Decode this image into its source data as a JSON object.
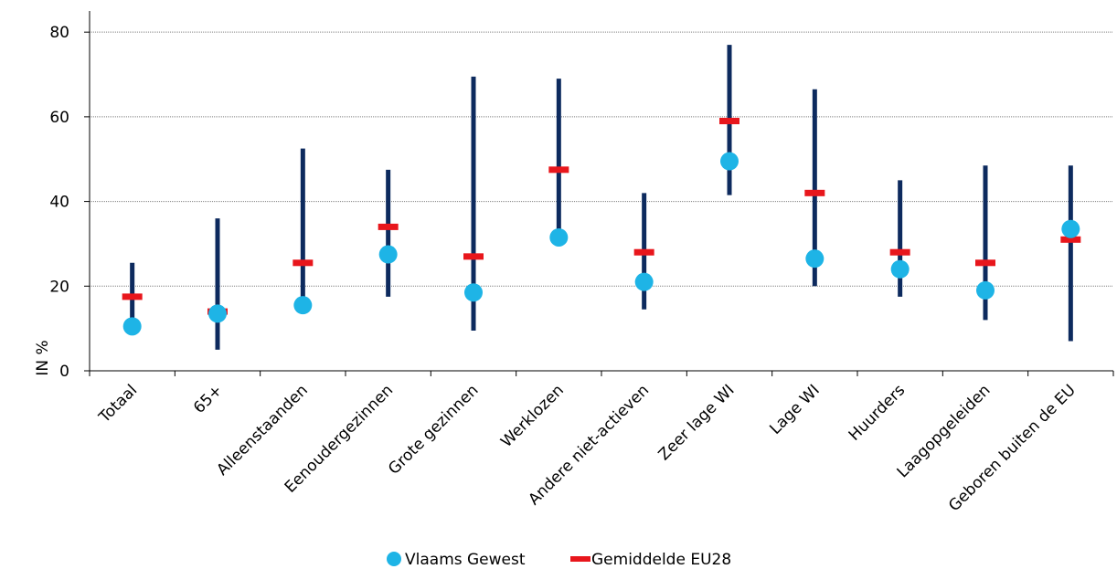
{
  "chart_data": {
    "type": "range-dot",
    "ylabel": "IN %",
    "ylim": [
      0,
      85
    ],
    "yticks": [
      "0",
      "20",
      "40",
      "60",
      "80"
    ],
    "grid": "horizontal-dotted",
    "legend_position": "bottom",
    "categories": [
      "Totaal",
      "65+",
      "Alleenstaanden",
      "Eenoudergezinnen",
      "Grote gezinnen",
      "Werklozen",
      "Andere niet-actieven",
      "Zeer lage WI",
      "Lage WI",
      "Huurders",
      "Laagopgeleiden",
      "Geboren buiten de EU"
    ],
    "range_min": [
      10,
      5,
      15,
      17.5,
      9.5,
      31,
      14.5,
      41.5,
      20,
      17.5,
      12,
      7
    ],
    "range_max": [
      25.5,
      36,
      52.5,
      47.5,
      69.5,
      69,
      42,
      77,
      66.5,
      45,
      48.5,
      48.5
    ],
    "series": [
      {
        "name": "Vlaams Gewest",
        "marker": "circle",
        "color": "#1eb4e6",
        "values": [
          10.5,
          13.5,
          15.5,
          27.5,
          18.5,
          31.5,
          21,
          49.5,
          26.5,
          24,
          19,
          33.5
        ]
      },
      {
        "name": "Gemiddelde EU28",
        "marker": "dash",
        "color": "#e8161c",
        "values": [
          17.5,
          14,
          25.5,
          34,
          27,
          47.5,
          28,
          59,
          42,
          28,
          25.5,
          31
        ]
      }
    ],
    "range_color": "#0d2a5e"
  }
}
